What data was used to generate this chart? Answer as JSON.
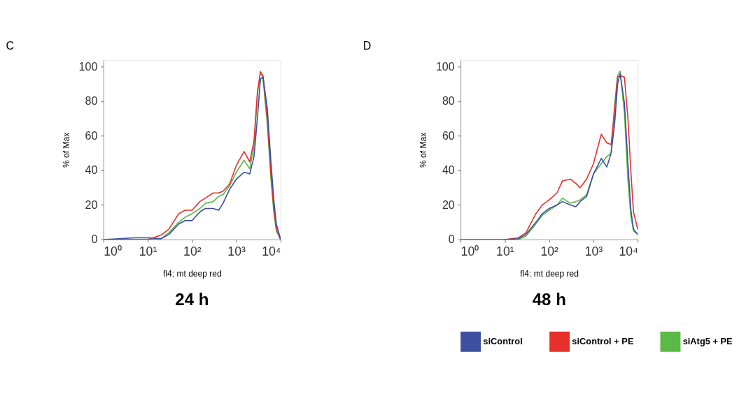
{
  "chart_data": [
    {
      "type": "line",
      "title": "C",
      "xlabel": "fl4: mt deep red",
      "ylabel": "% of Max",
      "annotations": [
        "24 h"
      ],
      "log": "x",
      "grid": false,
      "legend": false,
      "line_style": "solid",
      "marker": "none",
      "x": [
        1,
        5,
        10,
        20,
        30,
        50,
        70,
        100,
        150,
        200,
        300,
        400,
        500,
        700,
        1000,
        1500,
        2000,
        2500,
        3000,
        3500,
        4000,
        5000,
        6000,
        7000,
        8000,
        10000
      ],
      "xlim": [
        1,
        10000
      ],
      "ylim": [
        0,
        104
      ],
      "xticks": [
        {
          "value": 1,
          "label": "10⁰"
        },
        {
          "value": 10,
          "label": "10¹"
        },
        {
          "value": 100,
          "label": "10²"
        },
        {
          "value": 1000,
          "label": "10³"
        },
        {
          "value": 10000,
          "label": "10⁴"
        }
      ],
      "yticks": [
        0,
        20,
        40,
        60,
        80,
        100
      ],
      "series": [
        {
          "color": "#3c4fa0",
          "values": [
            0,
            1,
            1,
            0.5,
            3,
            9,
            11,
            11,
            16,
            18,
            18,
            17,
            21,
            29,
            35,
            39,
            38,
            48,
            71,
            93,
            94,
            76,
            46,
            23,
            9,
            0
          ]
        },
        {
          "color": "#e8302a",
          "x": [
            1,
            10,
            20,
            30,
            50,
            70,
            100,
            150,
            200,
            300,
            400,
            500,
            700,
            1000,
            1500,
            2000,
            2500,
            3000,
            3500,
            4000,
            5000,
            6000,
            7000,
            8000,
            10000
          ],
          "values": [
            0,
            0,
            2.6,
            6,
            15,
            17,
            17,
            22,
            24,
            27,
            27,
            28,
            32,
            43,
            51,
            45,
            57,
            86,
            97,
            95,
            70,
            39,
            18,
            6,
            0
          ]
        },
        {
          "color": "#5bb946",
          "values": [
            0,
            0,
            0,
            0.5,
            4,
            10,
            13,
            15,
            18,
            21,
            22,
            25,
            26,
            31,
            39,
            46,
            41,
            54,
            84,
            97.5,
            93,
            67,
            36,
            16,
            5,
            0
          ]
        }
      ]
    },
    {
      "type": "line",
      "title": "D",
      "xlabel": "fl4: mt deep red",
      "ylabel": "% of Max",
      "annotations": [
        "48 h"
      ],
      "log": "x",
      "grid": false,
      "legend": "bottom",
      "line_style": "solid",
      "marker": "none",
      "x": [
        1,
        10,
        20,
        30,
        50,
        70,
        100,
        150,
        200,
        300,
        400,
        500,
        700,
        1000,
        1500,
        2000,
        2500,
        3000,
        3500,
        4000,
        5000,
        6000,
        7000,
        8000,
        10000
      ],
      "xlim": [
        1,
        10000
      ],
      "ylim": [
        0,
        104
      ],
      "xticks": [
        {
          "value": 1,
          "label": "10⁰"
        },
        {
          "value": 10,
          "label": "10¹"
        },
        {
          "value": 100,
          "label": "10²"
        },
        {
          "value": 1000,
          "label": "10³"
        },
        {
          "value": 10000,
          "label": "10⁴"
        }
      ],
      "yticks": [
        0,
        20,
        40,
        60,
        80,
        100
      ],
      "series": [
        {
          "name": "siControl",
          "color": "#3c4fa0",
          "x": [
            10,
            20,
            30,
            50,
            70,
            100,
            150,
            200,
            300,
            400,
            500,
            700,
            1000,
            1500,
            2000,
            2500,
            3000,
            3500,
            4000,
            5000,
            6000,
            7000,
            8000,
            10000
          ],
          "values": [
            0,
            0.5,
            3,
            10,
            15,
            18,
            20,
            22,
            20,
            19,
            22,
            25,
            38,
            47,
            42,
            50,
            67,
            90,
            96,
            79,
            44,
            17,
            6,
            3
          ]
        },
        {
          "name": "siControl + PE",
          "color": "#e8302a",
          "values": [
            0,
            0,
            1,
            4,
            15,
            20,
            23,
            27,
            34,
            35,
            32.5,
            30,
            35,
            44,
            61,
            56,
            55,
            75,
            94,
            95,
            94,
            70,
            39,
            16,
            6
          ]
        },
        {
          "name": "siAtg5 + PE",
          "color": "#5bb946",
          "values": [
            0,
            0,
            0,
            2,
            9,
            14,
            17,
            20,
            24,
            21,
            22,
            23,
            26,
            38,
            44,
            48,
            50,
            78,
            95,
            97.5,
            73,
            34,
            13,
            5,
            3
          ]
        }
      ]
    }
  ]
}
